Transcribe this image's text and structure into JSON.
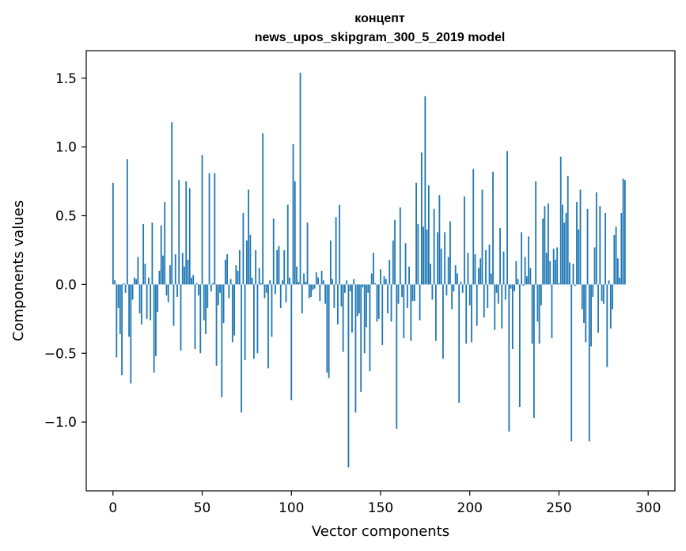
{
  "chart_data": {
    "type": "bar",
    "title_lines": [
      "концепт",
      "news_upos_skipgram_300_5_2019 model"
    ],
    "xlabel": "Vector components",
    "ylabel": "Components values",
    "xlim": [
      -15,
      315
    ],
    "ylim": [
      -1.5,
      1.7
    ],
    "xticks": [
      0,
      50,
      100,
      150,
      200,
      250,
      300
    ],
    "yticks": [
      -1.0,
      -0.5,
      0.0,
      0.5,
      1.0,
      1.5
    ],
    "ytick_labels": [
      "−1.0",
      "−0.5",
      "0.0",
      "0.5",
      "1.0",
      "1.5"
    ],
    "bar_color": "#1f77b4",
    "grid": false,
    "values": [
      0.74,
      0.03,
      -0.53,
      -0.17,
      -0.36,
      -0.66,
      0.01,
      -0.06,
      0.91,
      -0.38,
      -0.72,
      -0.11,
      0.05,
      0.04,
      0.2,
      -0.21,
      -0.29,
      0.44,
      0.15,
      -0.25,
      0.05,
      -0.26,
      0.45,
      -0.64,
      -0.52,
      -0.2,
      0.1,
      0.43,
      0.21,
      0.6,
      -0.08,
      -0.13,
      0.14,
      1.18,
      -0.3,
      0.22,
      -0.09,
      0.76,
      -0.48,
      0.23,
      0.13,
      0.75,
      0.18,
      0.7,
      0.05,
      0.07,
      -0.47,
      0.01,
      -0.08,
      -0.5,
      0.94,
      -0.26,
      -0.36,
      -0.17,
      0.81,
      -0.05,
      0.01,
      0.81,
      -0.59,
      -0.15,
      -0.06,
      -0.82,
      -0.28,
      0.18,
      0.22,
      -0.1,
      0.04,
      -0.42,
      -0.37,
      0.14,
      0.1,
      0.25,
      -0.93,
      0.52,
      -0.55,
      0.32,
      0.69,
      0.36,
      0.05,
      -0.54,
      0.25,
      -0.5,
      0.12,
      0.01,
      1.1,
      -0.1,
      -0.06,
      -0.61,
      0.03,
      -0.38,
      0.48,
      -0.07,
      0.25,
      0.28,
      -0.17,
      0.03,
      0.25,
      -0.13,
      0.58,
      0.05,
      -0.84,
      1.02,
      0.75,
      0.13,
      0.02,
      1.54,
      -0.21,
      0.08,
      0.02,
      0.45,
      -0.1,
      -0.09,
      -0.04,
      -0.03,
      0.09,
      0.05,
      -0.12,
      0.1,
      0.03,
      -0.14,
      -0.64,
      -0.68,
      0.32,
      0.04,
      -0.17,
      0.49,
      -0.29,
      0.58,
      -0.16,
      -0.49,
      -0.06,
      0.03,
      -1.33,
      -0.05,
      -0.35,
      0.04,
      -0.93,
      -0.23,
      -0.21,
      -0.78,
      -0.02,
      -0.5,
      -0.31,
      -0.06,
      -0.63,
      0.08,
      0.23,
      0.01,
      -0.27,
      -0.25,
      0.11,
      -0.44,
      0.06,
      0.04,
      -0.21,
      0.18,
      -0.27,
      0.32,
      0.47,
      -1.05,
      -0.14,
      0.56,
      -0.09,
      -0.39,
      0.3,
      -0.17,
      0.13,
      -0.41,
      -0.12,
      -0.12,
      0.74,
      0.44,
      -0.26,
      0.96,
      0.42,
      1.37,
      0.4,
      0.72,
      0.15,
      -0.11,
      0.55,
      -0.41,
      0.38,
      0.65,
      0.26,
      -0.54,
      0.38,
      -0.08,
      0.2,
      0.46,
      -0.18,
      -0.05,
      0.14,
      0.08,
      -0.86,
      0.02,
      -0.06,
      0.64,
      -0.43,
      0.23,
      -0.15,
      -0.42,
      0.84,
      0.22,
      -0.3,
      0.12,
      0.19,
      0.69,
      -0.24,
      0.25,
      -0.17,
      0.29,
      0.08,
      0.82,
      -0.33,
      -0.06,
      -0.14,
      0.41,
      -0.32,
      0.24,
      -0.11,
      0.97,
      -1.07,
      -0.03,
      -0.47,
      -0.05,
      0.17,
      0.04,
      -0.89,
      0.38,
      -0.01,
      0.2,
      0.06,
      0.35,
      0.12,
      -0.43,
      -0.97,
      0.75,
      -0.27,
      -0.43,
      -0.15,
      0.48,
      0.57,
      0.23,
      0.59,
      0.17,
      -0.39,
      0.26,
      0.18,
      0.27,
      0.01,
      0.93,
      0.58,
      0.45,
      0.52,
      0.79,
      0.16,
      -1.14,
      0.15,
      -0.01,
      0.6,
      0.4,
      0.69,
      -0.18,
      -0.28,
      -0.42,
      0.55,
      -1.14,
      -0.45,
      -0.09,
      0.27,
      0.67,
      -0.35,
      0.57,
      -0.12,
      -0.14,
      0.52,
      -0.6,
      0.03,
      -0.32,
      -0.18,
      0.36,
      0.42,
      0.19,
      0.05,
      0.52,
      0.77,
      0.76
    ]
  }
}
